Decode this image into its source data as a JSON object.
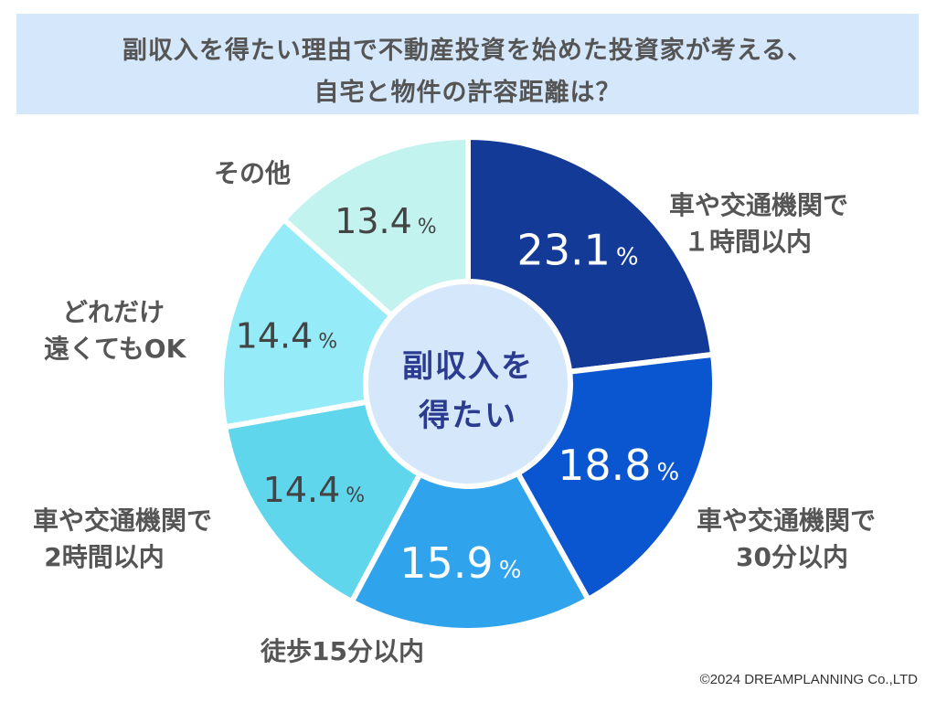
{
  "title": {
    "line1": "副収入を得たい理由で不動産投資を始めた投資家が考える、",
    "line2": "自宅と物件の許容距離は？"
  },
  "center_label": {
    "line1": "副収入を",
    "line2": "得たい"
  },
  "chart_data": {
    "type": "pie",
    "style": "donut",
    "unit": "%",
    "title": "副収入を得たい理由で不動産投資を始めた投資家が考える、自宅と物件の許容距離は？",
    "center_text": "副収入を得たい",
    "slices": [
      {
        "label": "車や交通機関で１時間以内",
        "value": 23.1,
        "color": "#143a98",
        "text_color": "#ffffff"
      },
      {
        "label": "車や交通機関で30分以内",
        "value": 18.8,
        "color": "#0a56d0",
        "text_color": "#ffffff"
      },
      {
        "label": "徒歩15分以内",
        "value": 15.9,
        "color": "#2fa4ec",
        "text_color": "#ffffff"
      },
      {
        "label": "車や交通機関で2時間以内",
        "value": 14.4,
        "color": "#60d6ec",
        "text_color": "#444444"
      },
      {
        "label": "どれだけ遠くてもOK",
        "value": 14.4,
        "color": "#95ebf7",
        "text_color": "#444444"
      },
      {
        "label": "その他",
        "value": 13.4,
        "color": "#c2f3ef",
        "text_color": "#444444"
      }
    ],
    "start_angle": "12 o'clock",
    "direction": "clockwise"
  },
  "labels": [
    {
      "lines": [
        "車や交通機関で",
        "１時間以内"
      ]
    },
    {
      "lines": [
        "車や交通機関で",
        "30分以内"
      ]
    },
    {
      "lines": [
        "徒歩15分以内"
      ]
    },
    {
      "lines": [
        "車や交通機関で",
        "2時間以内"
      ]
    },
    {
      "lines": [
        "どれだけ",
        "遠くてもOK"
      ]
    },
    {
      "lines": [
        "その他"
      ]
    }
  ],
  "colors": {
    "banner": "#d5e8fb",
    "center_fill": "#d5e8fb",
    "center_text": "#2b3b8f"
  },
  "copyright": "©2024 DREAMPLANNING Co.,LTD"
}
